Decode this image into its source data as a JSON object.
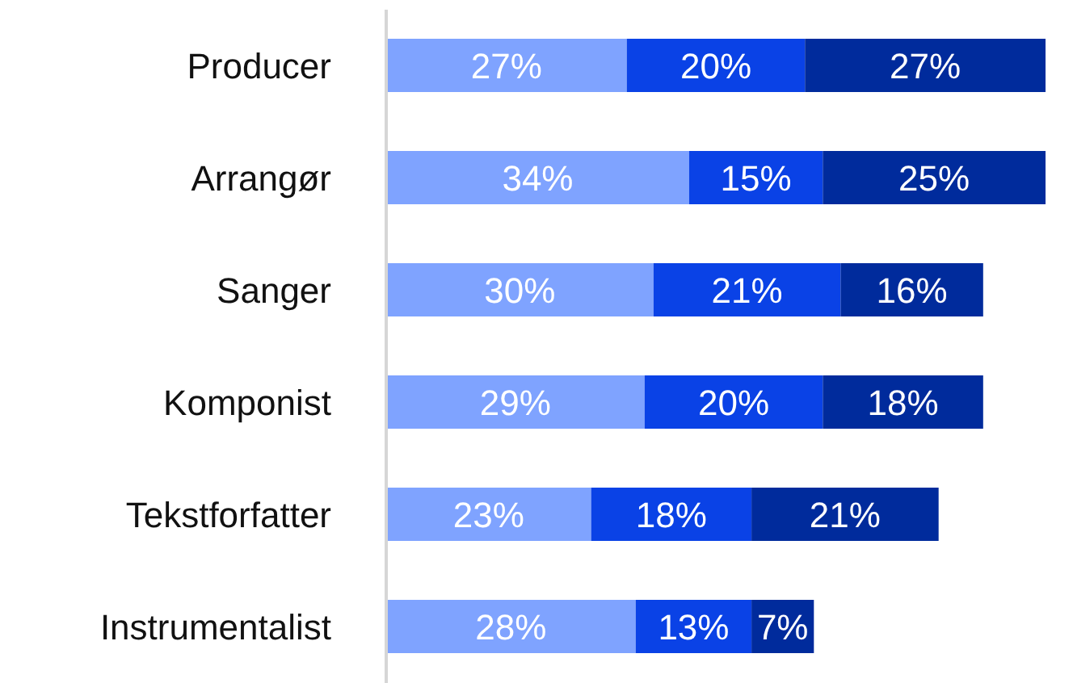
{
  "chart_data": {
    "type": "bar",
    "orientation": "horizontal",
    "stacked": true,
    "legend": false,
    "grid": false,
    "tick_labels": "y",
    "categories": [
      "Producer",
      "Arrangør",
      "Sanger",
      "Komponist",
      "Tekstforfatter",
      "Instrumentalist"
    ],
    "series": [
      {
        "color": "#7fa3ff",
        "values": [
          27,
          34,
          30,
          29,
          23,
          28
        ],
        "value_labels": [
          "27%",
          "34%",
          "30%",
          "29%",
          "23%",
          "28%"
        ]
      },
      {
        "color": "#0a42e6",
        "values": [
          20,
          15,
          21,
          20,
          18,
          13
        ],
        "value_labels": [
          "20%",
          "15%",
          "21%",
          "20%",
          "18%",
          "13%"
        ]
      },
      {
        "color": "#002b9c",
        "values": [
          27,
          25,
          16,
          18,
          21,
          7
        ],
        "value_labels": [
          "27%",
          "25%",
          "16%",
          "18%",
          "21%",
          "7%"
        ]
      }
    ]
  }
}
